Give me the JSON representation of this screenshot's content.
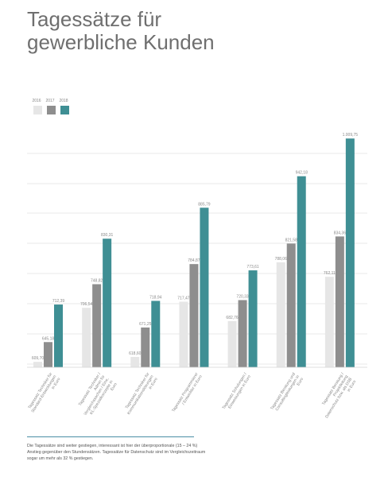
{
  "title": {
    "line1": "Tagessätze für",
    "line2": "gewerbliche Kunden"
  },
  "footnote": "Die Tagessätze sind weiter gestiegen, interessant ist hier der überproportionale (15 – 24 %) Anstieg gegenüber den Stundensätzen. Tagessätze für Datenschutz sind im Vergleichszeitraum sogar um mehr als 32 % gestiegen.",
  "colors": {
    "2016": "#e6e6e6",
    "2017": "#8e8e8e",
    "2018": "#3f8f94"
  },
  "chart_data": {
    "type": "bar",
    "categories": [
      "Tagessatz Techniker für Standard-Entwicklungen in Euro",
      "Tagessatz Techniker / Admin für Vergleichssachen / Eine, KL-Spezialkonzepte in Euro",
      "Tagessatz Techniker für Kommunikationslösungen in Euro",
      "Tagessatz Programmierer / Entwickler in Euro",
      "Tagessatz Schulungen / Einweisungen in Euro",
      "Tagessatz Beratung und Consultingleistungen in Euro",
      "Tagessatz Beratung / Projektleitung Datenschutz bzw. als DSB in Euro"
    ],
    "series": [
      {
        "name": "2016",
        "values": [
          609.7,
          706.54,
          618.6,
          717.47,
          682.76,
          788.06,
          762.11
        ],
        "labels": [
          "609,70",
          "706,54",
          "618,60",
          "717,47",
          "682,76",
          "788,06",
          "762,11"
        ]
      },
      {
        "name": "2017",
        "values": [
          645.18,
          748.82,
          671.25,
          784.87,
          720.33,
          821.58,
          834.36
        ],
        "labels": [
          "645,18",
          "748,82",
          "671,25",
          "784,87",
          "720,33",
          "821,58",
          "834,36"
        ]
      },
      {
        "name": "2018",
        "values": [
          712.39,
          830.31,
          718.94,
          885.79,
          773.61,
          942.18,
          1009.75
        ],
        "labels": [
          "712,39",
          "830,31",
          "718,94",
          "885,79",
          "773,61",
          "942,18",
          "1.009,75"
        ]
      }
    ],
    "ylim": [
      600,
      1030
    ],
    "grid": true,
    "legend": "top-left"
  }
}
